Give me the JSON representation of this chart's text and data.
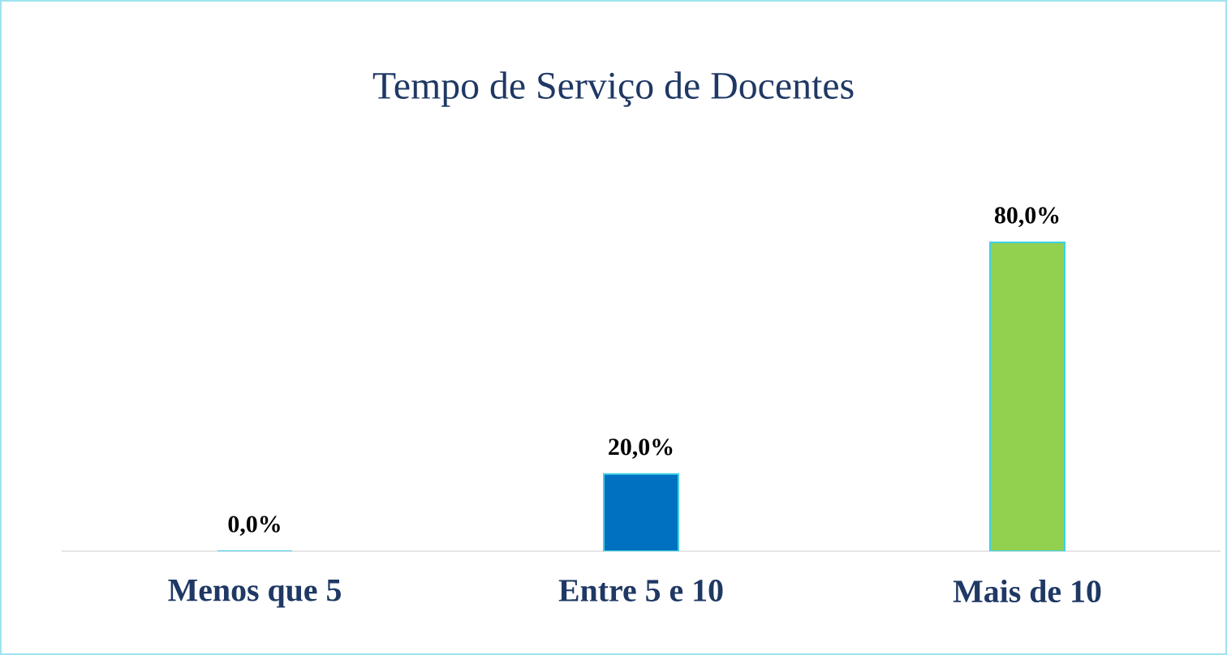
{
  "chart_data": {
    "type": "bar",
    "title": "Tempo de Serviço de Docentes",
    "categories": [
      "Menos que 5",
      "Entre 5 e 10",
      "Mais de 10"
    ],
    "values": [
      0,
      20,
      80
    ],
    "colors": [
      "#0070c0",
      "#0070c0",
      "#92d050"
    ],
    "value_labels": [
      "0,0%",
      "20,0%",
      "80,0%"
    ]
  }
}
